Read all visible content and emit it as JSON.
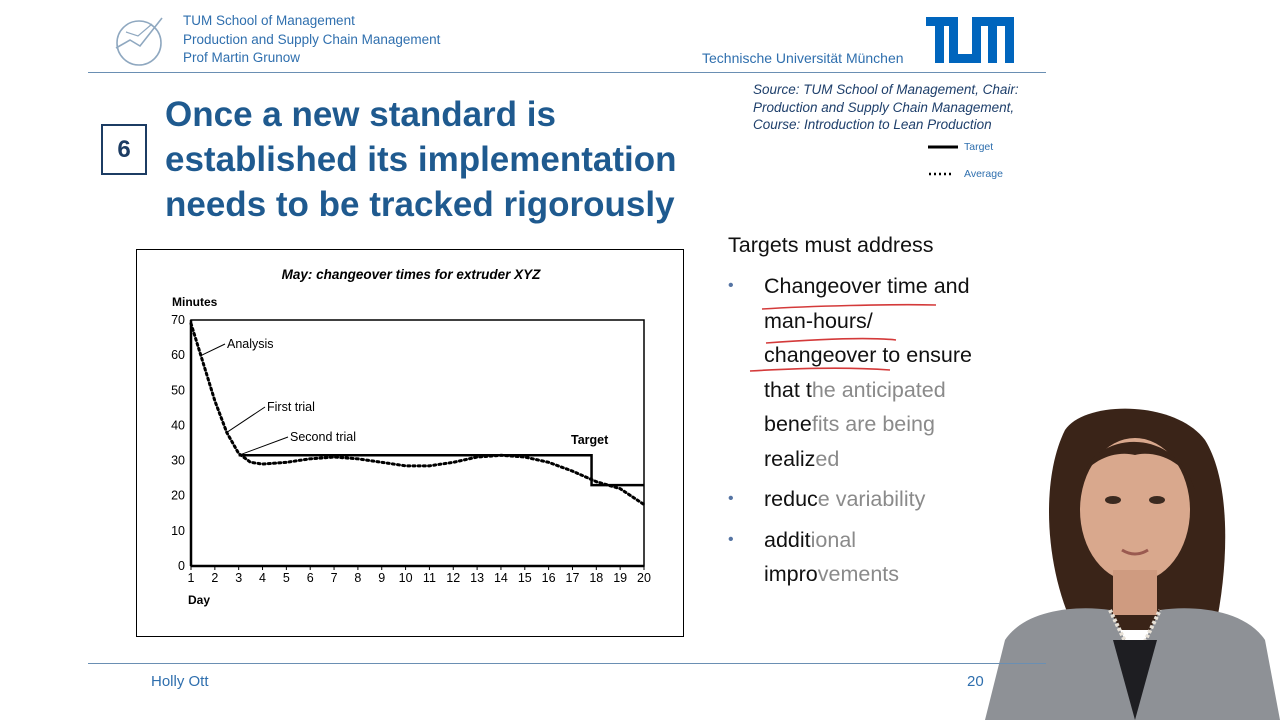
{
  "header": {
    "school_lines": [
      "TUM School of Management",
      "Production and Supply Chain Management",
      "Prof Martin Grunow"
    ],
    "university": "Technische Universität München"
  },
  "source": {
    "lines": [
      "Source: TUM School of Management, Chair:",
      "Production and Supply Chain Management,",
      "Course: Introduction to Lean Production"
    ]
  },
  "legend": {
    "target": "Target",
    "average": "Average"
  },
  "slide": {
    "number": "6",
    "title_lines": [
      "Once a new standard is",
      "established its implementation",
      "needs to be tracked rigorously"
    ]
  },
  "chart_data": {
    "type": "line",
    "title": "May: changeover times for extruder XYZ",
    "ylabel": "Minutes",
    "xlabel": "Day",
    "xlim": [
      1,
      20
    ],
    "ylim": [
      0,
      70
    ],
    "xticks": [
      "1",
      "2",
      "3",
      "4",
      "5",
      "6",
      "7",
      "8",
      "9",
      "10",
      "11",
      "12",
      "13",
      "14",
      "15",
      "16",
      "17",
      "18",
      "19",
      "20"
    ],
    "yticks": [
      "0",
      "10",
      "20",
      "30",
      "40",
      "50",
      "60",
      "70"
    ],
    "annotations": [
      "Analysis",
      "First trial",
      "Second trial",
      "Target"
    ],
    "series": [
      {
        "name": "Target",
        "style": "solid",
        "x": [
          3,
          17.8,
          17.8,
          20
        ],
        "y": [
          31.5,
          31.5,
          23,
          23
        ]
      },
      {
        "name": "Average",
        "style": "dotted",
        "x": [
          1,
          1.5,
          2,
          2.5,
          3,
          3.5,
          4,
          5,
          6,
          7,
          8,
          9,
          10,
          11,
          12,
          13,
          14,
          15,
          16,
          17,
          18,
          19,
          20
        ],
        "y": [
          69,
          58,
          47,
          38,
          32,
          29.5,
          29,
          29.5,
          30.5,
          31,
          30.5,
          29.5,
          28.5,
          28.5,
          29.5,
          31,
          31.5,
          31,
          29.5,
          27,
          24,
          22,
          17.5
        ]
      }
    ]
  },
  "targets": {
    "heading": "Targets must address",
    "bullets": [
      {
        "lines": [
          [
            {
              "t": "Changeover time and",
              "c": "#111"
            }
          ],
          [
            {
              "t": "man-hours/",
              "c": "#111"
            }
          ],
          [
            {
              "t": "changeover to ensure",
              "c": "#111"
            }
          ],
          [
            {
              "t": "that t",
              "c": "#111"
            },
            {
              "t": "he anticipated",
              "c": "#8a8a8a"
            }
          ],
          [
            {
              "t": "bene",
              "c": "#111"
            },
            {
              "t": "fits are being",
              "c": "#8a8a8a"
            }
          ],
          [
            {
              "t": "realiz",
              "c": "#111"
            },
            {
              "t": "ed",
              "c": "#8a8a8a"
            }
          ]
        ]
      },
      {
        "lines": [
          [
            {
              "t": "reduc",
              "c": "#111"
            },
            {
              "t": "e variability",
              "c": "#8a8a8a"
            }
          ]
        ]
      },
      {
        "lines": [
          [
            {
              "t": "addit",
              "c": "#111"
            },
            {
              "t": "ional",
              "c": "#8a8a8a"
            }
          ],
          [
            {
              "t": "impro",
              "c": "#111"
            },
            {
              "t": "vements",
              "c": "#8a8a8a"
            }
          ]
        ]
      }
    ]
  },
  "footer": {
    "name": "Holly Ott",
    "page": "20"
  },
  "colors": {
    "brand_blue": "#2f6fae",
    "title_blue": "#1f5a8f",
    "annotation_red": "#d43a3a"
  }
}
